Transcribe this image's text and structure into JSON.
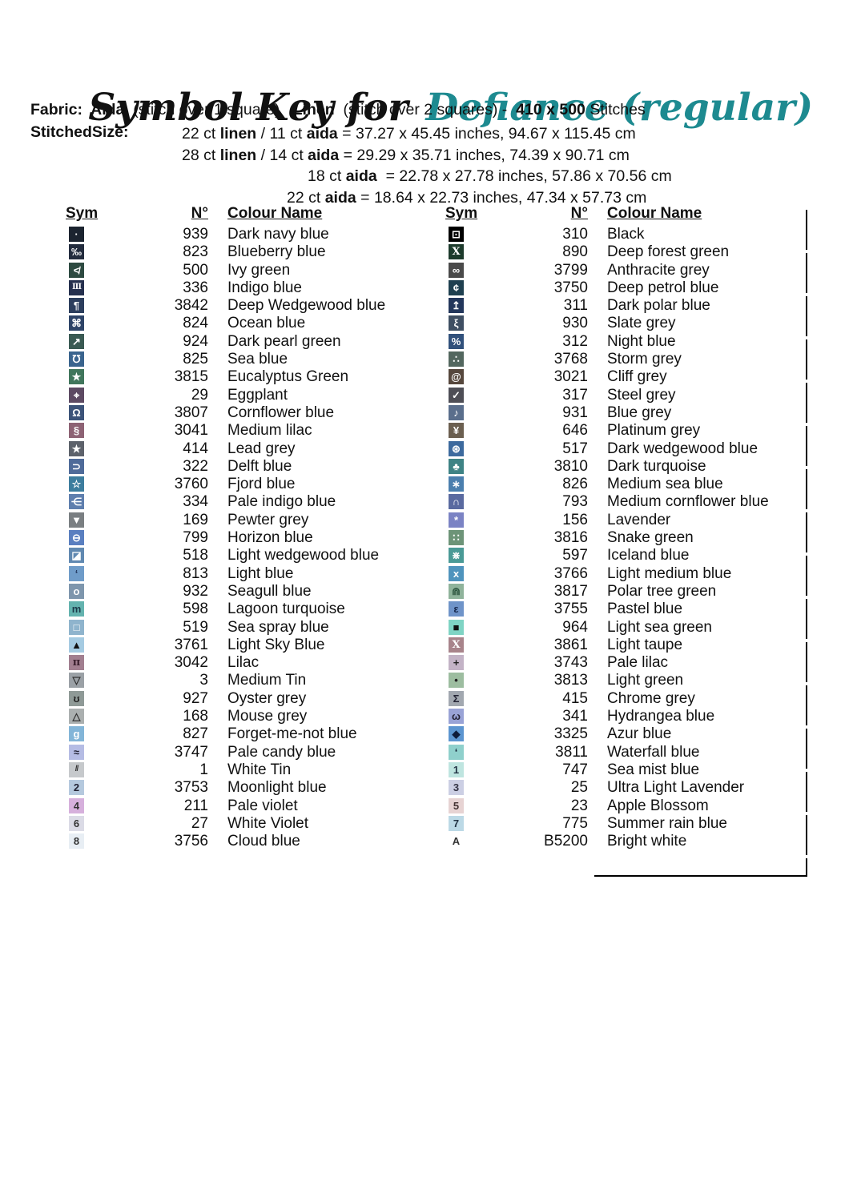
{
  "accent_teal": "#1d8a90",
  "title": {
    "prefix": "Symbol Key for",
    "name": "Defiance (regular)"
  },
  "fabric_line_segments": [
    [
      "Fabric:  ",
      1
    ],
    [
      "Aida",
      1
    ],
    [
      "  (stitch over 1 square)   ",
      0
    ],
    [
      "Linen",
      1
    ],
    [
      "  (stitch over 2 squares) -  ",
      0
    ],
    [
      "410 x 500",
      1
    ],
    [
      " Stitches",
      0
    ]
  ],
  "stitched_size": {
    "label": "StitchedSize:",
    "lines": [
      {
        "indent": 227,
        "segments": [
          [
            "22 ct ",
            0
          ],
          [
            "linen",
            1
          ],
          [
            " / 11 ct ",
            0
          ],
          [
            "aida",
            1
          ],
          [
            " = 37.27 x 45.45 inches, 94.67 x 115.45 cm",
            0
          ]
        ]
      },
      {
        "indent": 227,
        "segments": [
          [
            "28 ct ",
            0
          ],
          [
            "linen",
            1
          ],
          [
            " / 14 ct ",
            0
          ],
          [
            "aida",
            1
          ],
          [
            " = 29.29 x 35.71 inches, 74.39 x 90.71 cm",
            0
          ]
        ]
      },
      {
        "indent": 384,
        "segments": [
          [
            "18 ct ",
            0
          ],
          [
            "aida",
            1
          ],
          [
            "  = 22.78 x 27.78 inches, 57.86 x 70.56 cm",
            0
          ]
        ]
      },
      {
        "indent": 358,
        "segments": [
          [
            "22 ct ",
            0
          ],
          [
            "aida",
            1
          ],
          [
            " = 18.64 x 22.73 inches, 47.34 x 57.73 cm",
            0
          ]
        ]
      }
    ]
  },
  "table": {
    "header": {
      "sym": "Sym",
      "no": "N°",
      "name": "Colour Name"
    },
    "columns": [
      {
        "rows": [
          {
            "no": "939",
            "name": "Dark navy blue",
            "glyph": "·",
            "bg": "#1c2430",
            "fg": "#ffffff"
          },
          {
            "no": "823",
            "name": "Blueberry blue",
            "glyph": "‰",
            "bg": "#232c3e",
            "fg": "#ffffff"
          },
          {
            "no": "500",
            "name": "Ivy green",
            "glyph": "≮",
            "bg": "#2d4a41",
            "fg": "#ffffff"
          },
          {
            "no": "336",
            "name": "Indigo blue",
            "glyph": "III",
            "bg": "#25304e",
            "fg": "#ffffff",
            "sf": 1
          },
          {
            "no": "3842",
            "name": "Deep Wedgewood blue",
            "glyph": "¶",
            "bg": "#2c3e5d",
            "fg": "#ffffff"
          },
          {
            "no": "824",
            "name": "Ocean blue",
            "glyph": "⌘",
            "bg": "#2e4468",
            "fg": "#ffffff"
          },
          {
            "no": "924",
            "name": "Dark pearl green",
            "glyph": "↗",
            "bg": "#3a5a53",
            "fg": "#ffffff"
          },
          {
            "no": "825",
            "name": "Sea blue",
            "glyph": "℧",
            "bg": "#3a648e",
            "fg": "#ffffff"
          },
          {
            "no": "3815",
            "name": "Eucalyptus Green",
            "glyph": "★",
            "bg": "#40765c",
            "fg": "#ffffff"
          },
          {
            "no": "29",
            "name": "Eggplant",
            "glyph": "⌖",
            "bg": "#5d4a63",
            "fg": "#ffffff"
          },
          {
            "no": "3807",
            "name": "Cornflower blue",
            "glyph": "Ω",
            "bg": "#3c5379",
            "fg": "#ffffff"
          },
          {
            "no": "3041",
            "name": "Medium lilac",
            "glyph": "§",
            "bg": "#8d6274",
            "fg": "#ffffff"
          },
          {
            "no": "414",
            "name": "Lead grey",
            "glyph": "★",
            "bg": "#5d626b",
            "fg": "#ffffff"
          },
          {
            "no": "322",
            "name": "Delft blue",
            "glyph": "⊃",
            "bg": "#4f6b99",
            "fg": "#ffffff"
          },
          {
            "no": "3760",
            "name": "Fjord blue",
            "glyph": "☆",
            "bg": "#3d7d9e",
            "fg": "#ffffff"
          },
          {
            "no": "334",
            "name": "Pale indigo blue",
            "glyph": "⋲",
            "bg": "#5f7fae",
            "fg": "#ffffff"
          },
          {
            "no": "169",
            "name": "Pewter grey",
            "glyph": "▼",
            "bg": "#7a7f82",
            "fg": "#ffffff"
          },
          {
            "no": "799",
            "name": "Horizon blue",
            "glyph": "⊖",
            "bg": "#5a7fc0",
            "fg": "#ffffff"
          },
          {
            "no": "518",
            "name": "Light wedgewood blue",
            "glyph": "◪",
            "bg": "#6189b1",
            "fg": "#ffffff"
          },
          {
            "no": "813",
            "name": "Light blue",
            "glyph": "‘",
            "bg": "#6f9cc9",
            "fg": "#1c2f55"
          },
          {
            "no": "932",
            "name": "Seagull blue",
            "glyph": "o",
            "bg": "#7e96ad",
            "fg": "#ffffff"
          },
          {
            "no": "598",
            "name": "Lagoon turquoise",
            "glyph": "m",
            "bg": "#64b3af",
            "fg": "#1d3a4a"
          },
          {
            "no": "519",
            "name": "Sea spray blue",
            "glyph": "□",
            "bg": "#8fb4cd",
            "fg": "#ffffff"
          },
          {
            "no": "3761",
            "name": "Light Sky Blue",
            "glyph": "▲",
            "bg": "#a5cbe2",
            "fg": "#111111"
          },
          {
            "no": "3042",
            "name": "Lilac",
            "glyph": "π",
            "bg": "#a27f90",
            "fg": "#3a1f2d",
            "sf": 1
          },
          {
            "no": "3",
            "name": "Medium Tin",
            "glyph": "▽",
            "bg": "#9ba1a6",
            "fg": "#333333"
          },
          {
            "no": "927",
            "name": "Oyster grey",
            "glyph": "ʊ",
            "bg": "#8f9a97",
            "fg": "#222222"
          },
          {
            "no": "168",
            "name": "Mouse grey",
            "glyph": "△",
            "bg": "#abb0b0",
            "fg": "#333333"
          },
          {
            "no": "827",
            "name": "Forget-me-not blue",
            "glyph": "g",
            "bg": "#83b5d8",
            "fg": "#ffffff"
          },
          {
            "no": "3747",
            "name": "Pale candy blue",
            "glyph": "≈",
            "bg": "#b5bce4",
            "fg": "#222233"
          },
          {
            "no": "1",
            "name": "White Tin",
            "glyph": "//",
            "bg": "#c6c9cc",
            "fg": "#333333"
          },
          {
            "no": "3753",
            "name": "Moonlight blue",
            "glyph": "2",
            "bg": "#b5c9de",
            "fg": "#222233"
          },
          {
            "no": "211",
            "name": "Pale violet",
            "glyph": "4",
            "bg": "#d6b0dc",
            "fg": "#333333"
          },
          {
            "no": "27",
            "name": "White Violet",
            "glyph": "6",
            "bg": "#dbdbe6",
            "fg": "#333333"
          },
          {
            "no": "3756",
            "name": "Cloud blue",
            "glyph": "8",
            "bg": "#e8eef4",
            "fg": "#333333"
          }
        ]
      },
      {
        "rows": [
          {
            "no": "310",
            "name": "Black",
            "glyph": "⊡",
            "bg": "#000000",
            "fg": "#ffffff"
          },
          {
            "no": "890",
            "name": "Deep forest green",
            "glyph": "X",
            "bg": "#1d3b2c",
            "fg": "#ffffff",
            "sf": 1
          },
          {
            "no": "3799",
            "name": "Anthracite grey",
            "glyph": "∞",
            "bg": "#4a4a4a",
            "fg": "#ffffff"
          },
          {
            "no": "3750",
            "name": "Deep petrol blue",
            "glyph": "¢",
            "bg": "#1f4050",
            "fg": "#ffffff"
          },
          {
            "no": "311",
            "name": "Dark polar blue",
            "glyph": "↥",
            "bg": "#23375c",
            "fg": "#ffffff"
          },
          {
            "no": "930",
            "name": "Slate grey",
            "glyph": "ξ",
            "bg": "#3f4f63",
            "fg": "#ffffff"
          },
          {
            "no": "312",
            "name": "Night blue",
            "glyph": "%",
            "bg": "#31517c",
            "fg": "#ffffff"
          },
          {
            "no": "3768",
            "name": "Storm grey",
            "glyph": "∴",
            "bg": "#53675f",
            "fg": "#ffffff"
          },
          {
            "no": "3021",
            "name": "Cliff grey",
            "glyph": "@",
            "bg": "#56473d",
            "fg": "#ffffff"
          },
          {
            "no": "317",
            "name": "Steel grey",
            "glyph": "✓",
            "bg": "#4e4e56",
            "fg": "#ffffff"
          },
          {
            "no": "931",
            "name": "Blue grey",
            "glyph": "♪",
            "bg": "#5a6e8c",
            "fg": "#ffffff"
          },
          {
            "no": "646",
            "name": "Platinum grey",
            "glyph": "¥",
            "bg": "#6b5f50",
            "fg": "#ffffff"
          },
          {
            "no": "517",
            "name": "Dark wedgewood blue",
            "glyph": "⊛",
            "bg": "#3d6a9e",
            "fg": "#ffffff"
          },
          {
            "no": "3810",
            "name": "Dark turquoise",
            "glyph": "♣",
            "bg": "#3e8385",
            "fg": "#ffffff"
          },
          {
            "no": "826",
            "name": "Medium sea blue",
            "glyph": "∗",
            "bg": "#4b7fae",
            "fg": "#ffffff"
          },
          {
            "no": "793",
            "name": "Medium cornflower blue",
            "glyph": "∩",
            "bg": "#5a6aa0",
            "fg": "#ffffff"
          },
          {
            "no": "156",
            "name": "Lavender",
            "glyph": "*",
            "bg": "#7b83c4",
            "fg": "#ffffff"
          },
          {
            "no": "3816",
            "name": "Snake green",
            "glyph": "∷",
            "bg": "#6d9478",
            "fg": "#ffffff"
          },
          {
            "no": "597",
            "name": "Iceland blue",
            "glyph": "⋇",
            "bg": "#4a9a96",
            "fg": "#ffffff"
          },
          {
            "no": "3766",
            "name": "Light medium blue",
            "glyph": "x",
            "bg": "#4f94bd",
            "fg": "#ffffff"
          },
          {
            "no": "3817",
            "name": "Polar tree green",
            "glyph": "⋒",
            "bg": "#8fb39b",
            "fg": "#2e5640"
          },
          {
            "no": "3755",
            "name": "Pastel blue",
            "glyph": "ε",
            "bg": "#6f94c9",
            "fg": "#17294e"
          },
          {
            "no": "964",
            "name": "Light sea green",
            "glyph": "■",
            "bg": "#7fd4c4",
            "fg": "#111111"
          },
          {
            "no": "3861",
            "name": "Light taupe",
            "glyph": "X",
            "bg": "#a8848b",
            "fg": "#ffffff",
            "sf": 1
          },
          {
            "no": "3743",
            "name": "Pale lilac",
            "glyph": "+",
            "bg": "#c3b3c6",
            "fg": "#222222"
          },
          {
            "no": "3813",
            "name": "Light green",
            "glyph": "•",
            "bg": "#9dbda0",
            "fg": "#222222"
          },
          {
            "no": "415",
            "name": "Chrome grey",
            "glyph": "Σ",
            "bg": "#a2a8b0",
            "fg": "#222233"
          },
          {
            "no": "341",
            "name": "Hydrangea blue",
            "glyph": "ω",
            "bg": "#99a3d6",
            "fg": "#222233"
          },
          {
            "no": "3325",
            "name": "Azur blue",
            "glyph": "◆",
            "bg": "#5c95d0",
            "fg": "#0d1b3a"
          },
          {
            "no": "3811",
            "name": "Waterfall blue",
            "glyph": "‘",
            "bg": "#8fd0cc",
            "fg": "#112233"
          },
          {
            "no": "747",
            "name": "Sea mist blue",
            "glyph": "1",
            "bg": "#bfe5e0",
            "fg": "#223344"
          },
          {
            "no": "25",
            "name": "Ultra Light Lavender",
            "glyph": "3",
            "bg": "#cccfe4",
            "fg": "#333344"
          },
          {
            "no": "23",
            "name": "Apple Blossom",
            "glyph": "5",
            "bg": "#e7d3d3",
            "fg": "#443333"
          },
          {
            "no": "775",
            "name": "Summer rain blue",
            "glyph": "7",
            "bg": "#bcd9e6",
            "fg": "#223344"
          },
          {
            "no": "B5200",
            "name": "Bright white",
            "glyph": "A",
            "bg": "#ffffff",
            "fg": "#333333"
          }
        ]
      }
    ]
  }
}
